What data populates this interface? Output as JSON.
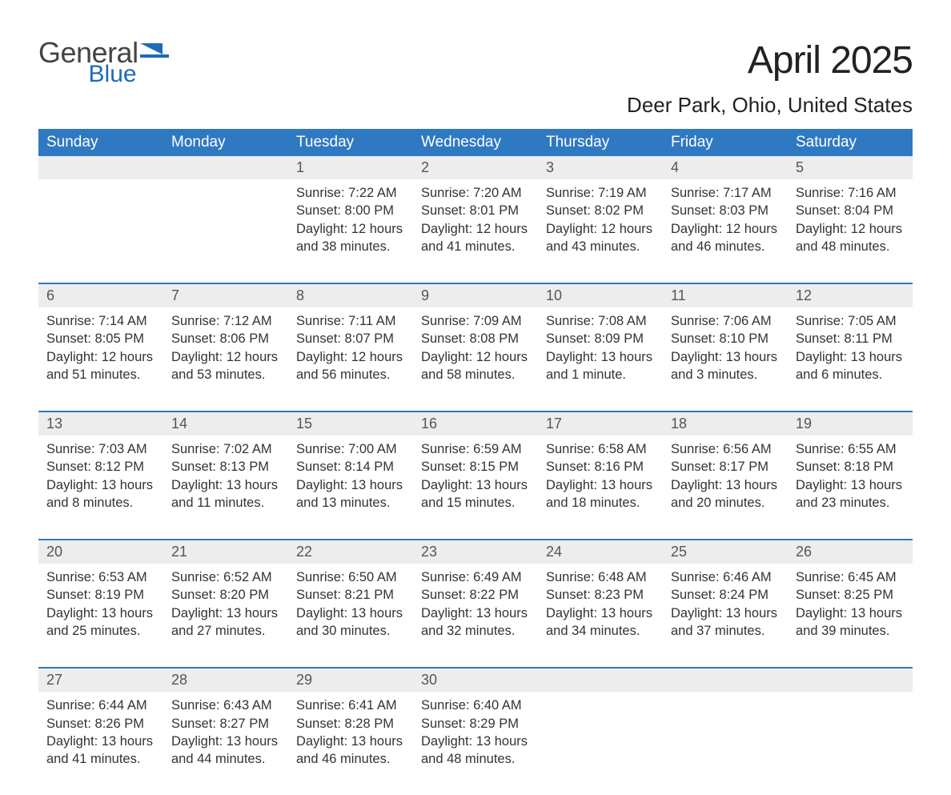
{
  "logo": {
    "word1": "General",
    "word2": "Blue",
    "icon_color": "#1f6bb7"
  },
  "title": "April 2025",
  "location": "Deer Park, Ohio, United States",
  "colors": {
    "header_bg": "#2f79c2",
    "header_text": "#ffffff",
    "daynum_bg": "#ededed",
    "row_border": "#2f79c2",
    "body_text": "#333333",
    "page_bg": "#ffffff"
  },
  "typography": {
    "title_fontsize": 48,
    "location_fontsize": 26,
    "header_fontsize": 19,
    "daynum_fontsize": 18,
    "cell_fontsize": 16.5
  },
  "day_headers": [
    "Sunday",
    "Monday",
    "Tuesday",
    "Wednesday",
    "Thursday",
    "Friday",
    "Saturday"
  ],
  "weeks": [
    [
      null,
      null,
      {
        "n": "1",
        "sr": "7:22 AM",
        "ss": "8:00 PM",
        "dl": "12 hours and 38 minutes."
      },
      {
        "n": "2",
        "sr": "7:20 AM",
        "ss": "8:01 PM",
        "dl": "12 hours and 41 minutes."
      },
      {
        "n": "3",
        "sr": "7:19 AM",
        "ss": "8:02 PM",
        "dl": "12 hours and 43 minutes."
      },
      {
        "n": "4",
        "sr": "7:17 AM",
        "ss": "8:03 PM",
        "dl": "12 hours and 46 minutes."
      },
      {
        "n": "5",
        "sr": "7:16 AM",
        "ss": "8:04 PM",
        "dl": "12 hours and 48 minutes."
      }
    ],
    [
      {
        "n": "6",
        "sr": "7:14 AM",
        "ss": "8:05 PM",
        "dl": "12 hours and 51 minutes."
      },
      {
        "n": "7",
        "sr": "7:12 AM",
        "ss": "8:06 PM",
        "dl": "12 hours and 53 minutes."
      },
      {
        "n": "8",
        "sr": "7:11 AM",
        "ss": "8:07 PM",
        "dl": "12 hours and 56 minutes."
      },
      {
        "n": "9",
        "sr": "7:09 AM",
        "ss": "8:08 PM",
        "dl": "12 hours and 58 minutes."
      },
      {
        "n": "10",
        "sr": "7:08 AM",
        "ss": "8:09 PM",
        "dl": "13 hours and 1 minute."
      },
      {
        "n": "11",
        "sr": "7:06 AM",
        "ss": "8:10 PM",
        "dl": "13 hours and 3 minutes."
      },
      {
        "n": "12",
        "sr": "7:05 AM",
        "ss": "8:11 PM",
        "dl": "13 hours and 6 minutes."
      }
    ],
    [
      {
        "n": "13",
        "sr": "7:03 AM",
        "ss": "8:12 PM",
        "dl": "13 hours and 8 minutes."
      },
      {
        "n": "14",
        "sr": "7:02 AM",
        "ss": "8:13 PM",
        "dl": "13 hours and 11 minutes."
      },
      {
        "n": "15",
        "sr": "7:00 AM",
        "ss": "8:14 PM",
        "dl": "13 hours and 13 minutes."
      },
      {
        "n": "16",
        "sr": "6:59 AM",
        "ss": "8:15 PM",
        "dl": "13 hours and 15 minutes."
      },
      {
        "n": "17",
        "sr": "6:58 AM",
        "ss": "8:16 PM",
        "dl": "13 hours and 18 minutes."
      },
      {
        "n": "18",
        "sr": "6:56 AM",
        "ss": "8:17 PM",
        "dl": "13 hours and 20 minutes."
      },
      {
        "n": "19",
        "sr": "6:55 AM",
        "ss": "8:18 PM",
        "dl": "13 hours and 23 minutes."
      }
    ],
    [
      {
        "n": "20",
        "sr": "6:53 AM",
        "ss": "8:19 PM",
        "dl": "13 hours and 25 minutes."
      },
      {
        "n": "21",
        "sr": "6:52 AM",
        "ss": "8:20 PM",
        "dl": "13 hours and 27 minutes."
      },
      {
        "n": "22",
        "sr": "6:50 AM",
        "ss": "8:21 PM",
        "dl": "13 hours and 30 minutes."
      },
      {
        "n": "23",
        "sr": "6:49 AM",
        "ss": "8:22 PM",
        "dl": "13 hours and 32 minutes."
      },
      {
        "n": "24",
        "sr": "6:48 AM",
        "ss": "8:23 PM",
        "dl": "13 hours and 34 minutes."
      },
      {
        "n": "25",
        "sr": "6:46 AM",
        "ss": "8:24 PM",
        "dl": "13 hours and 37 minutes."
      },
      {
        "n": "26",
        "sr": "6:45 AM",
        "ss": "8:25 PM",
        "dl": "13 hours and 39 minutes."
      }
    ],
    [
      {
        "n": "27",
        "sr": "6:44 AM",
        "ss": "8:26 PM",
        "dl": "13 hours and 41 minutes."
      },
      {
        "n": "28",
        "sr": "6:43 AM",
        "ss": "8:27 PM",
        "dl": "13 hours and 44 minutes."
      },
      {
        "n": "29",
        "sr": "6:41 AM",
        "ss": "8:28 PM",
        "dl": "13 hours and 46 minutes."
      },
      {
        "n": "30",
        "sr": "6:40 AM",
        "ss": "8:29 PM",
        "dl": "13 hours and 48 minutes."
      },
      null,
      null,
      null
    ]
  ],
  "labels": {
    "sunrise": "Sunrise: ",
    "sunset": "Sunset: ",
    "daylight": "Daylight: "
  }
}
